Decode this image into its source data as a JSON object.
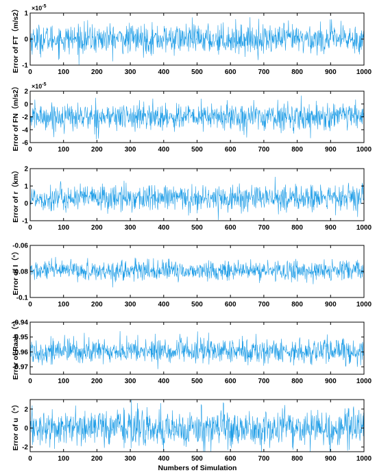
{
  "colors": {
    "series": "#1a9be6",
    "axis": "#000000"
  },
  "x_axis_label": "Numbers of Simulation",
  "chart_data": [
    {
      "type": "line",
      "ylabel": "Error of FT（m/s2）",
      "multiplier": "×10",
      "multiplier_exp": "-5",
      "xlim": [
        0,
        1000
      ],
      "ylim": [
        -1,
        1
      ],
      "yticks": [
        -1,
        0,
        1
      ],
      "ytick_labels": [
        "-1",
        "0",
        "1"
      ],
      "xticks": [
        0,
        100,
        200,
        300,
        400,
        500,
        600,
        700,
        800,
        900,
        1000
      ],
      "series": [
        {
          "mean": 0,
          "sd": 0.28,
          "points": 1000
        }
      ]
    },
    {
      "type": "line",
      "ylabel": "Error of FN（m/s2）",
      "multiplier": "×10",
      "multiplier_exp": "-5",
      "xlim": [
        0,
        1000
      ],
      "ylim": [
        -6,
        2
      ],
      "yticks": [
        -6,
        -4,
        -2,
        0,
        2
      ],
      "ytick_labels": [
        "-6",
        "-4",
        "-2",
        "0",
        "2"
      ],
      "xticks": [
        0,
        100,
        200,
        300,
        400,
        500,
        600,
        700,
        800,
        900,
        1000
      ],
      "series": [
        {
          "mean": -2,
          "sd": 1.05,
          "points": 1000
        }
      ]
    },
    {
      "type": "line",
      "ylabel": "Error of r（km）",
      "multiplier": "",
      "multiplier_exp": "",
      "xlim": [
        0,
        1000
      ],
      "ylim": [
        -1,
        2
      ],
      "yticks": [
        -1,
        0,
        1,
        2
      ],
      "ytick_labels": [
        "-1",
        "0",
        "1",
        "2"
      ],
      "xticks": [
        0,
        100,
        200,
        300,
        400,
        500,
        600,
        700,
        800,
        900,
        1000
      ],
      "series": [
        {
          "mean": 0.3,
          "sd": 0.38,
          "points": 1000
        }
      ]
    },
    {
      "type": "line",
      "ylabel": "Error of I（°）",
      "multiplier": "",
      "multiplier_exp": "",
      "xlim": [
        0,
        1000
      ],
      "ylim": [
        -0.1,
        -0.06
      ],
      "yticks": [
        -0.1,
        -0.08,
        -0.06
      ],
      "ytick_labels": [
        "-0.1",
        "-0.08",
        "-0.06"
      ],
      "xticks": [
        0,
        100,
        200,
        300,
        400,
        500,
        600,
        700,
        800,
        900,
        1000
      ],
      "series": [
        {
          "mean": -0.0795,
          "sd": 0.0038,
          "points": 1000
        }
      ]
    },
    {
      "type": "line",
      "ylabel": "Error of Raan（°）",
      "multiplier": "",
      "multiplier_exp": "",
      "xlim": [
        0,
        1000
      ],
      "ylim": [
        -0.975,
        -0.94
      ],
      "yticks": [
        -0.97,
        -0.96,
        -0.95,
        -0.94
      ],
      "ytick_labels": [
        "-0.97",
        "-0.96",
        "-0.95",
        "-0.94"
      ],
      "xticks": [
        0,
        100,
        200,
        300,
        400,
        500,
        600,
        700,
        800,
        900,
        1000
      ],
      "series": [
        {
          "mean": -0.9595,
          "sd": 0.0042,
          "points": 1000
        }
      ]
    },
    {
      "type": "line",
      "ylabel": "Error of u（°）",
      "multiplier": "",
      "multiplier_exp": "",
      "xlim": [
        0,
        1000
      ],
      "ylim": [
        -2.5,
        3
      ],
      "yticks": [
        -2,
        0,
        2
      ],
      "ytick_labels": [
        "-2",
        "0",
        "2"
      ],
      "xticks": [
        0,
        100,
        200,
        300,
        400,
        500,
        600,
        700,
        800,
        900,
        1000
      ],
      "series": [
        {
          "mean": 0,
          "sd": 0.95,
          "points": 1000
        }
      ]
    }
  ]
}
